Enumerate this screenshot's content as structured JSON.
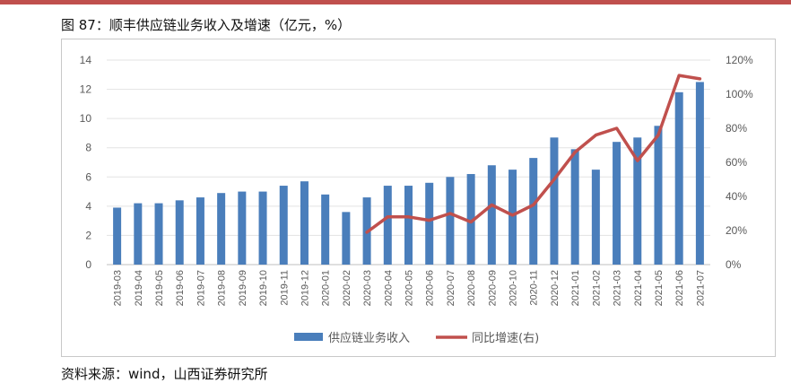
{
  "page": {
    "title": "图 87：顺丰供应链业务收入及增速（亿元，%）",
    "source": "资料来源：wind，山西证券研究所"
  },
  "colors": {
    "accent_rule": "#c0504d",
    "bar": "#4a7ebb",
    "line": "#c0504d",
    "axis_text": "#595959",
    "grid": "#e3e3e3"
  },
  "chart_data": {
    "type": "bar",
    "title": "",
    "categories": [
      "2019-03",
      "2019-04",
      "2019-05",
      "2019-06",
      "2019-07",
      "2019-08",
      "2019-09",
      "2019-10",
      "2019-11",
      "2019-12",
      "2020-01",
      "2020-02",
      "2020-03",
      "2020-04",
      "2020-05",
      "2020-06",
      "2020-07",
      "2020-08",
      "2020-09",
      "2020-10",
      "2020-11",
      "2020-12",
      "2021-01",
      "2021-02",
      "2021-03",
      "2021-04",
      "2021-05",
      "2021-06",
      "2021-07"
    ],
    "series": [
      {
        "name": "供应链业务收入",
        "type": "bar",
        "axis": "left",
        "values": [
          3.9,
          4.2,
          4.2,
          4.4,
          4.6,
          4.9,
          5.0,
          5.0,
          5.4,
          5.7,
          4.8,
          3.6,
          4.6,
          5.4,
          5.4,
          5.6,
          6.0,
          6.2,
          6.8,
          6.5,
          7.3,
          8.7,
          7.9,
          6.5,
          8.4,
          8.7,
          9.5,
          11.8,
          12.5
        ]
      },
      {
        "name": "同比增速(右)",
        "type": "line",
        "axis": "right",
        "values": [
          null,
          null,
          null,
          null,
          null,
          null,
          null,
          null,
          null,
          null,
          null,
          null,
          19,
          28,
          28,
          26,
          30,
          25,
          35,
          29,
          35,
          50,
          66,
          76,
          80,
          61,
          76,
          111,
          109
        ]
      }
    ],
    "y_left": {
      "min": 0,
      "max": 14,
      "ticks": [
        "0",
        "2",
        "4",
        "6",
        "8",
        "10",
        "12",
        "14"
      ]
    },
    "y_right": {
      "min": 0,
      "max": 120,
      "ticks": [
        "0%",
        "20%",
        "40%",
        "60%",
        "80%",
        "100%",
        "120%"
      ]
    },
    "grid": true,
    "legend_position": "bottom"
  }
}
